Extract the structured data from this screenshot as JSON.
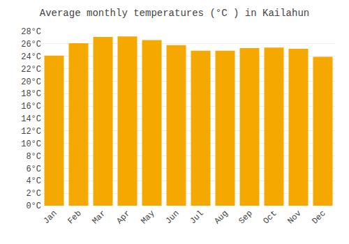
{
  "chart_data": {
    "type": "bar",
    "title": "Average monthly temperatures (°C ) in Kailahun",
    "categories": [
      "Jan",
      "Feb",
      "Mar",
      "Apr",
      "May",
      "Jun",
      "Jul",
      "Aug",
      "Sep",
      "Oct",
      "Nov",
      "Dec"
    ],
    "values": [
      24.1,
      26.1,
      27.1,
      27.2,
      26.6,
      25.8,
      24.9,
      24.9,
      25.3,
      25.4,
      25.2,
      23.9
    ],
    "color": "#F5A800",
    "ylim": [
      0,
      28
    ],
    "yticks": [
      {
        "value": 0,
        "label": "0°C"
      },
      {
        "value": 2,
        "label": "2°C"
      },
      {
        "value": 4,
        "label": "4°C"
      },
      {
        "value": 6,
        "label": "6°C"
      },
      {
        "value": 8,
        "label": "8°C"
      },
      {
        "value": 10,
        "label": "10°C"
      },
      {
        "value": 12,
        "label": "12°C"
      },
      {
        "value": 14,
        "label": "14°C"
      },
      {
        "value": 16,
        "label": "16°C"
      },
      {
        "value": 18,
        "label": "18°C"
      },
      {
        "value": 20,
        "label": "20°C"
      },
      {
        "value": 22,
        "label": "22°C"
      },
      {
        "value": 24,
        "label": "24°C"
      },
      {
        "value": 26,
        "label": "26°C"
      },
      {
        "value": 28,
        "label": "28°C"
      }
    ],
    "grid": true
  }
}
